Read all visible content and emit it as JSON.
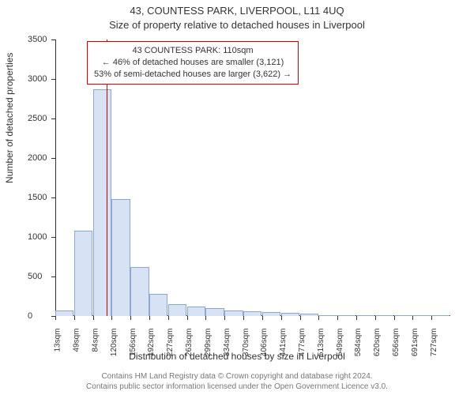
{
  "titles": {
    "line1": "43, COUNTESS PARK, LIVERPOOL, L11 4UQ",
    "line2": "Size of property relative to detached houses in Liverpool"
  },
  "axes": {
    "y_label": "Number of detached properties",
    "x_label": "Distribution of detached houses by size in Liverpool",
    "y_ticks": [
      0,
      500,
      1000,
      1500,
      2000,
      2500,
      3000,
      3500
    ],
    "ylim": [
      0,
      3500
    ],
    "x_tick_labels": [
      "13sqm",
      "49sqm",
      "84sqm",
      "120sqm",
      "156sqm",
      "192sqm",
      "227sqm",
      "263sqm",
      "299sqm",
      "334sqm",
      "370sqm",
      "406sqm",
      "441sqm",
      "477sqm",
      "513sqm",
      "549sqm",
      "584sqm",
      "620sqm",
      "656sqm",
      "691sqm",
      "727sqm"
    ]
  },
  "histogram": {
    "type": "histogram",
    "values": [
      70,
      1080,
      2870,
      1480,
      620,
      280,
      150,
      120,
      100,
      75,
      60,
      55,
      45,
      30,
      0,
      0,
      0,
      0,
      0,
      0,
      0
    ],
    "bar_fill": "#d7e3f4",
    "bar_stroke": "#8fa8c9",
    "background_color": "#ffffff"
  },
  "marker": {
    "position_sqm": 110,
    "color": "#cc0000",
    "info_lines": {
      "l1": "43 COUNTESS PARK: 110sqm",
      "l2": "← 46% of detached houses are smaller (3,121)",
      "l3": "53% of semi-detached houses are larger (3,622) →"
    }
  },
  "footer": {
    "l1": "Contains HM Land Registry data © Crown copyright and database right 2024.",
    "l2": "Contains public sector information licensed under the Open Government Licence v3.0."
  }
}
